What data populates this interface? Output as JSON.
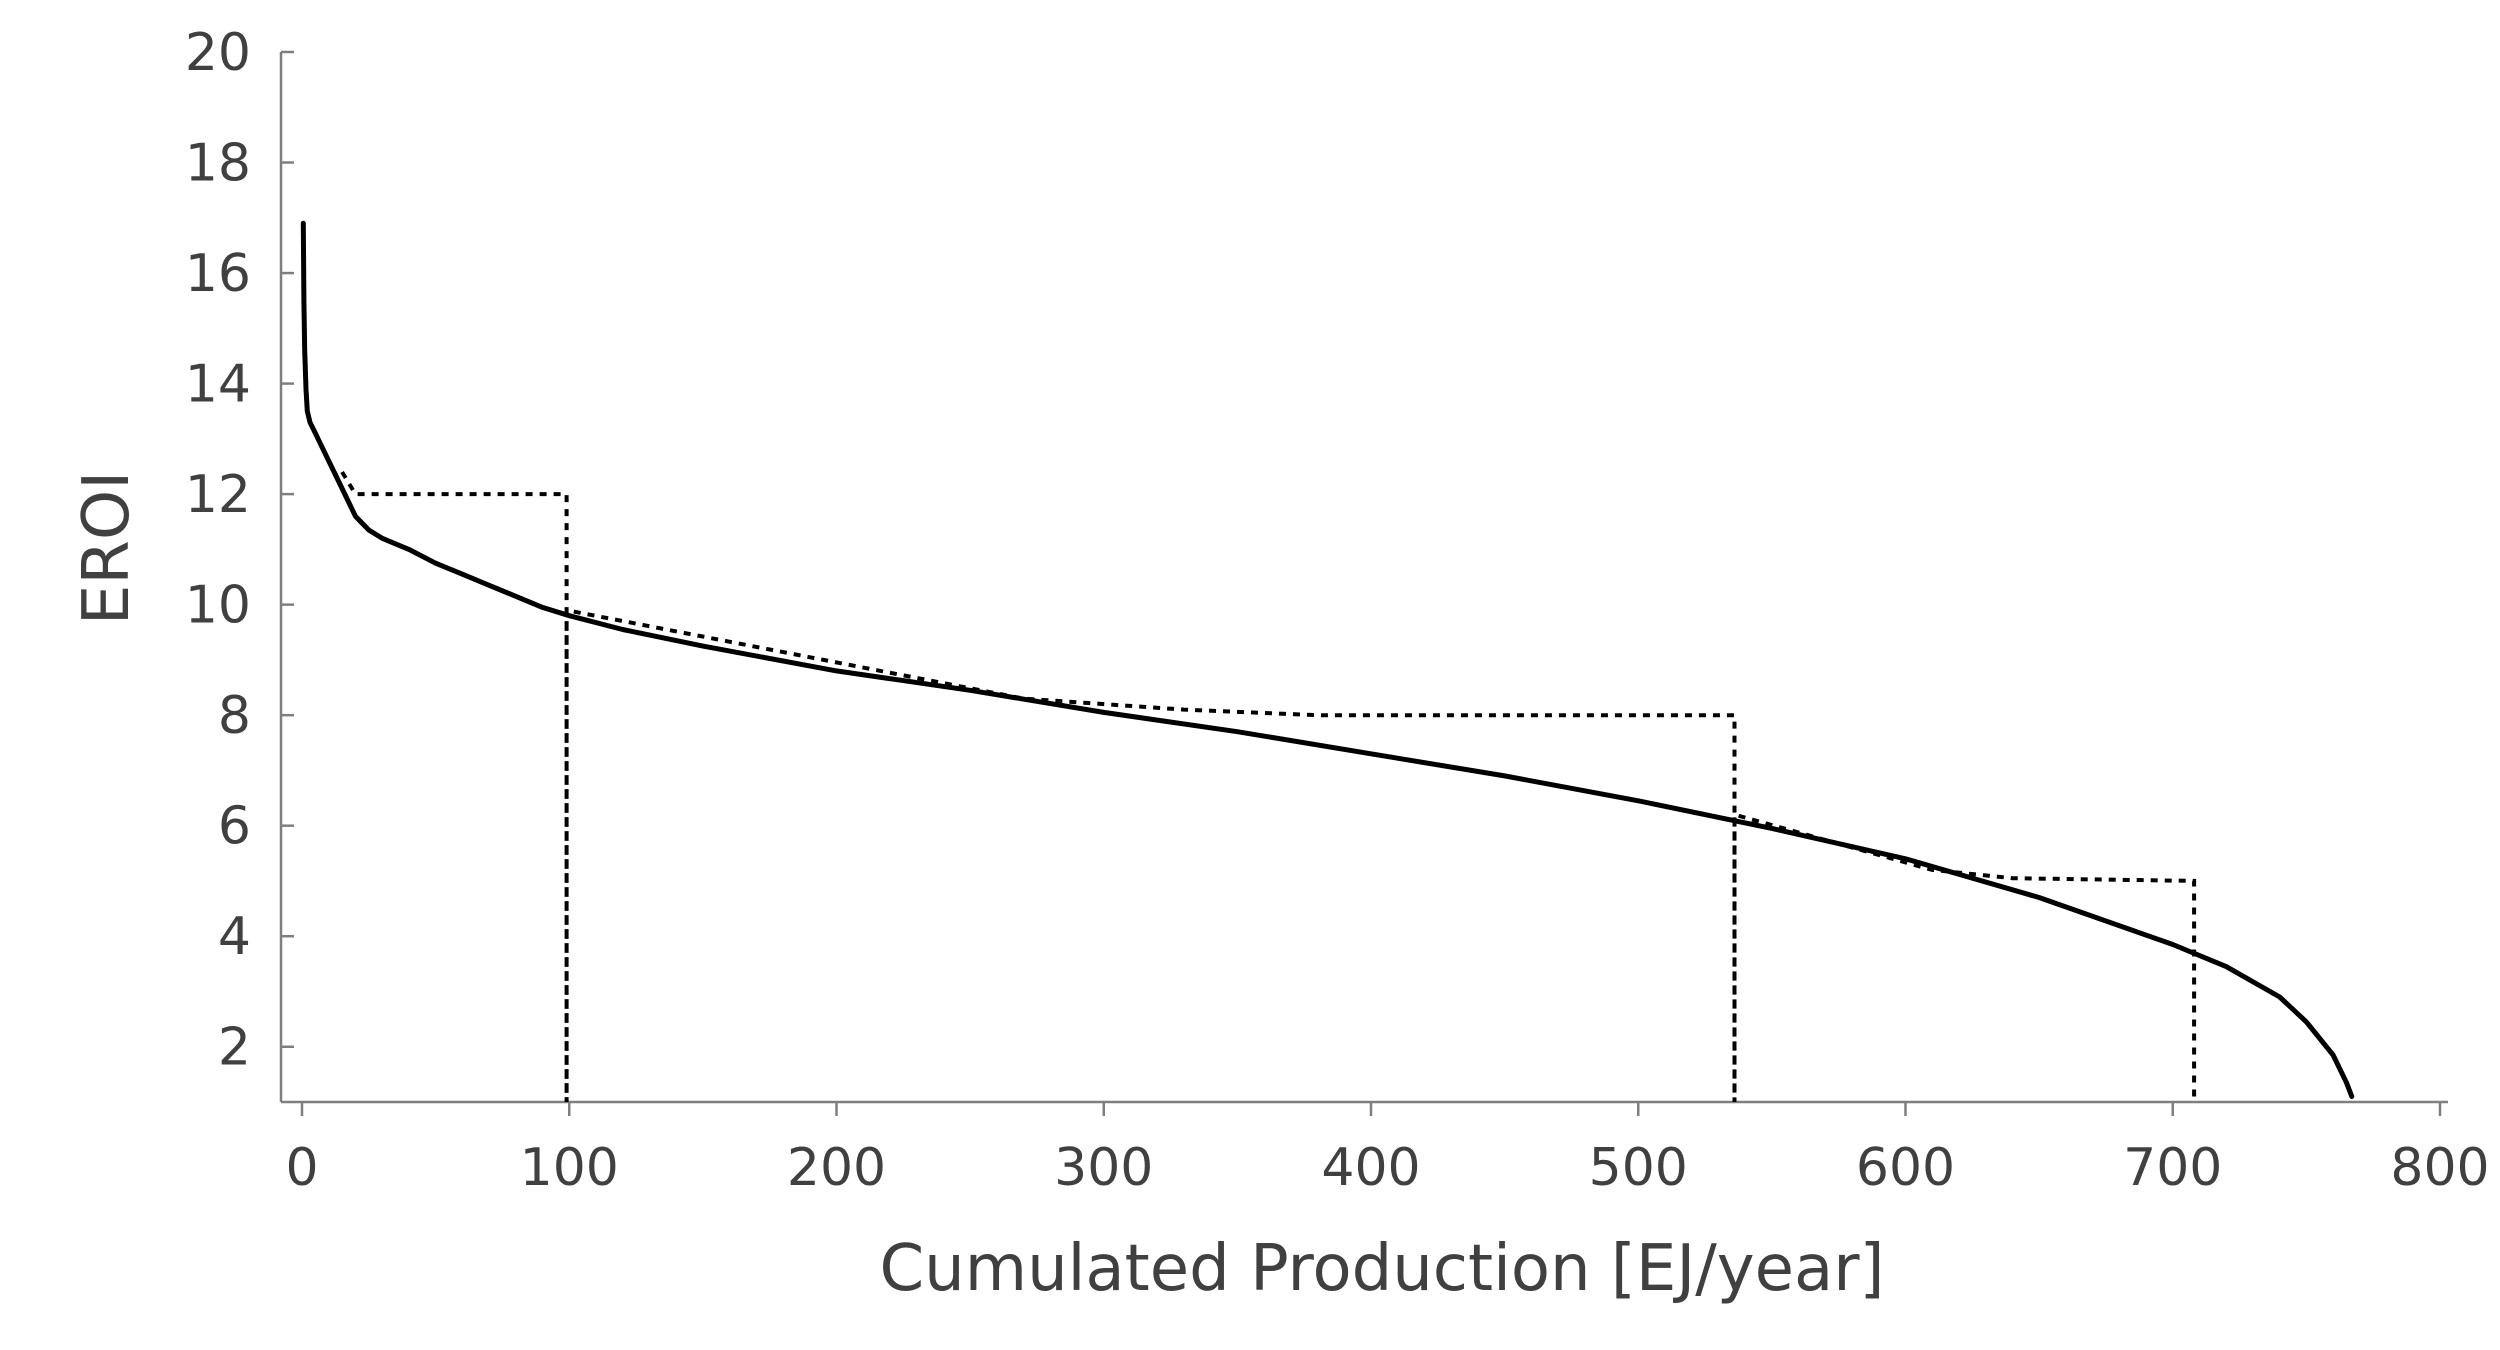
{
  "chart_data": {
    "type": "line",
    "title": "",
    "xlabel": "Cumulated  Production [EJ/year]",
    "ylabel": "EROI",
    "xlim": [
      0,
      800
    ],
    "ylim": [
      1,
      20
    ],
    "x_ticks": [
      0,
      100,
      200,
      300,
      400,
      500,
      600,
      700,
      800
    ],
    "y_ticks": [
      2,
      4,
      6,
      8,
      10,
      12,
      14,
      16,
      18,
      20
    ],
    "grid": false,
    "legend": "none",
    "series": [
      {
        "style": "solid",
        "color": "#000000",
        "x": [
          0.5,
          0.7,
          1,
          1.5,
          2,
          3,
          5,
          8,
          12,
          16,
          20,
          25,
          30,
          40,
          50,
          60,
          70,
          80,
          90,
          100,
          120,
          150,
          200,
          250,
          300,
          350,
          400,
          450,
          500,
          550,
          600,
          650,
          700,
          720,
          740,
          750,
          760,
          765,
          767
        ],
        "y": [
          16.9,
          15.5,
          14.6,
          13.9,
          13.5,
          13.3,
          13.1,
          12.8,
          12.4,
          12.0,
          11.6,
          11.35,
          11.2,
          11.0,
          10.75,
          10.55,
          10.35,
          10.15,
          9.95,
          9.8,
          9.55,
          9.25,
          8.8,
          8.45,
          8.05,
          7.7,
          7.3,
          6.9,
          6.45,
          5.95,
          5.4,
          4.7,
          3.85,
          3.45,
          2.9,
          2.45,
          1.85,
          1.35,
          1.1
        ]
      },
      {
        "style": "dotted",
        "color": "#000000",
        "x": [
          15,
          20,
          99,
          99,
          99,
          270,
          330,
          380,
          536,
          536,
          536,
          610,
          640,
          708,
          708
        ],
        "y": [
          12.4,
          12.0,
          12.0,
          1.0,
          9.9,
          8.3,
          8.1,
          8.0,
          8.0,
          1.0,
          6.2,
          5.2,
          5.05,
          5.0,
          1.0
        ]
      }
    ]
  }
}
